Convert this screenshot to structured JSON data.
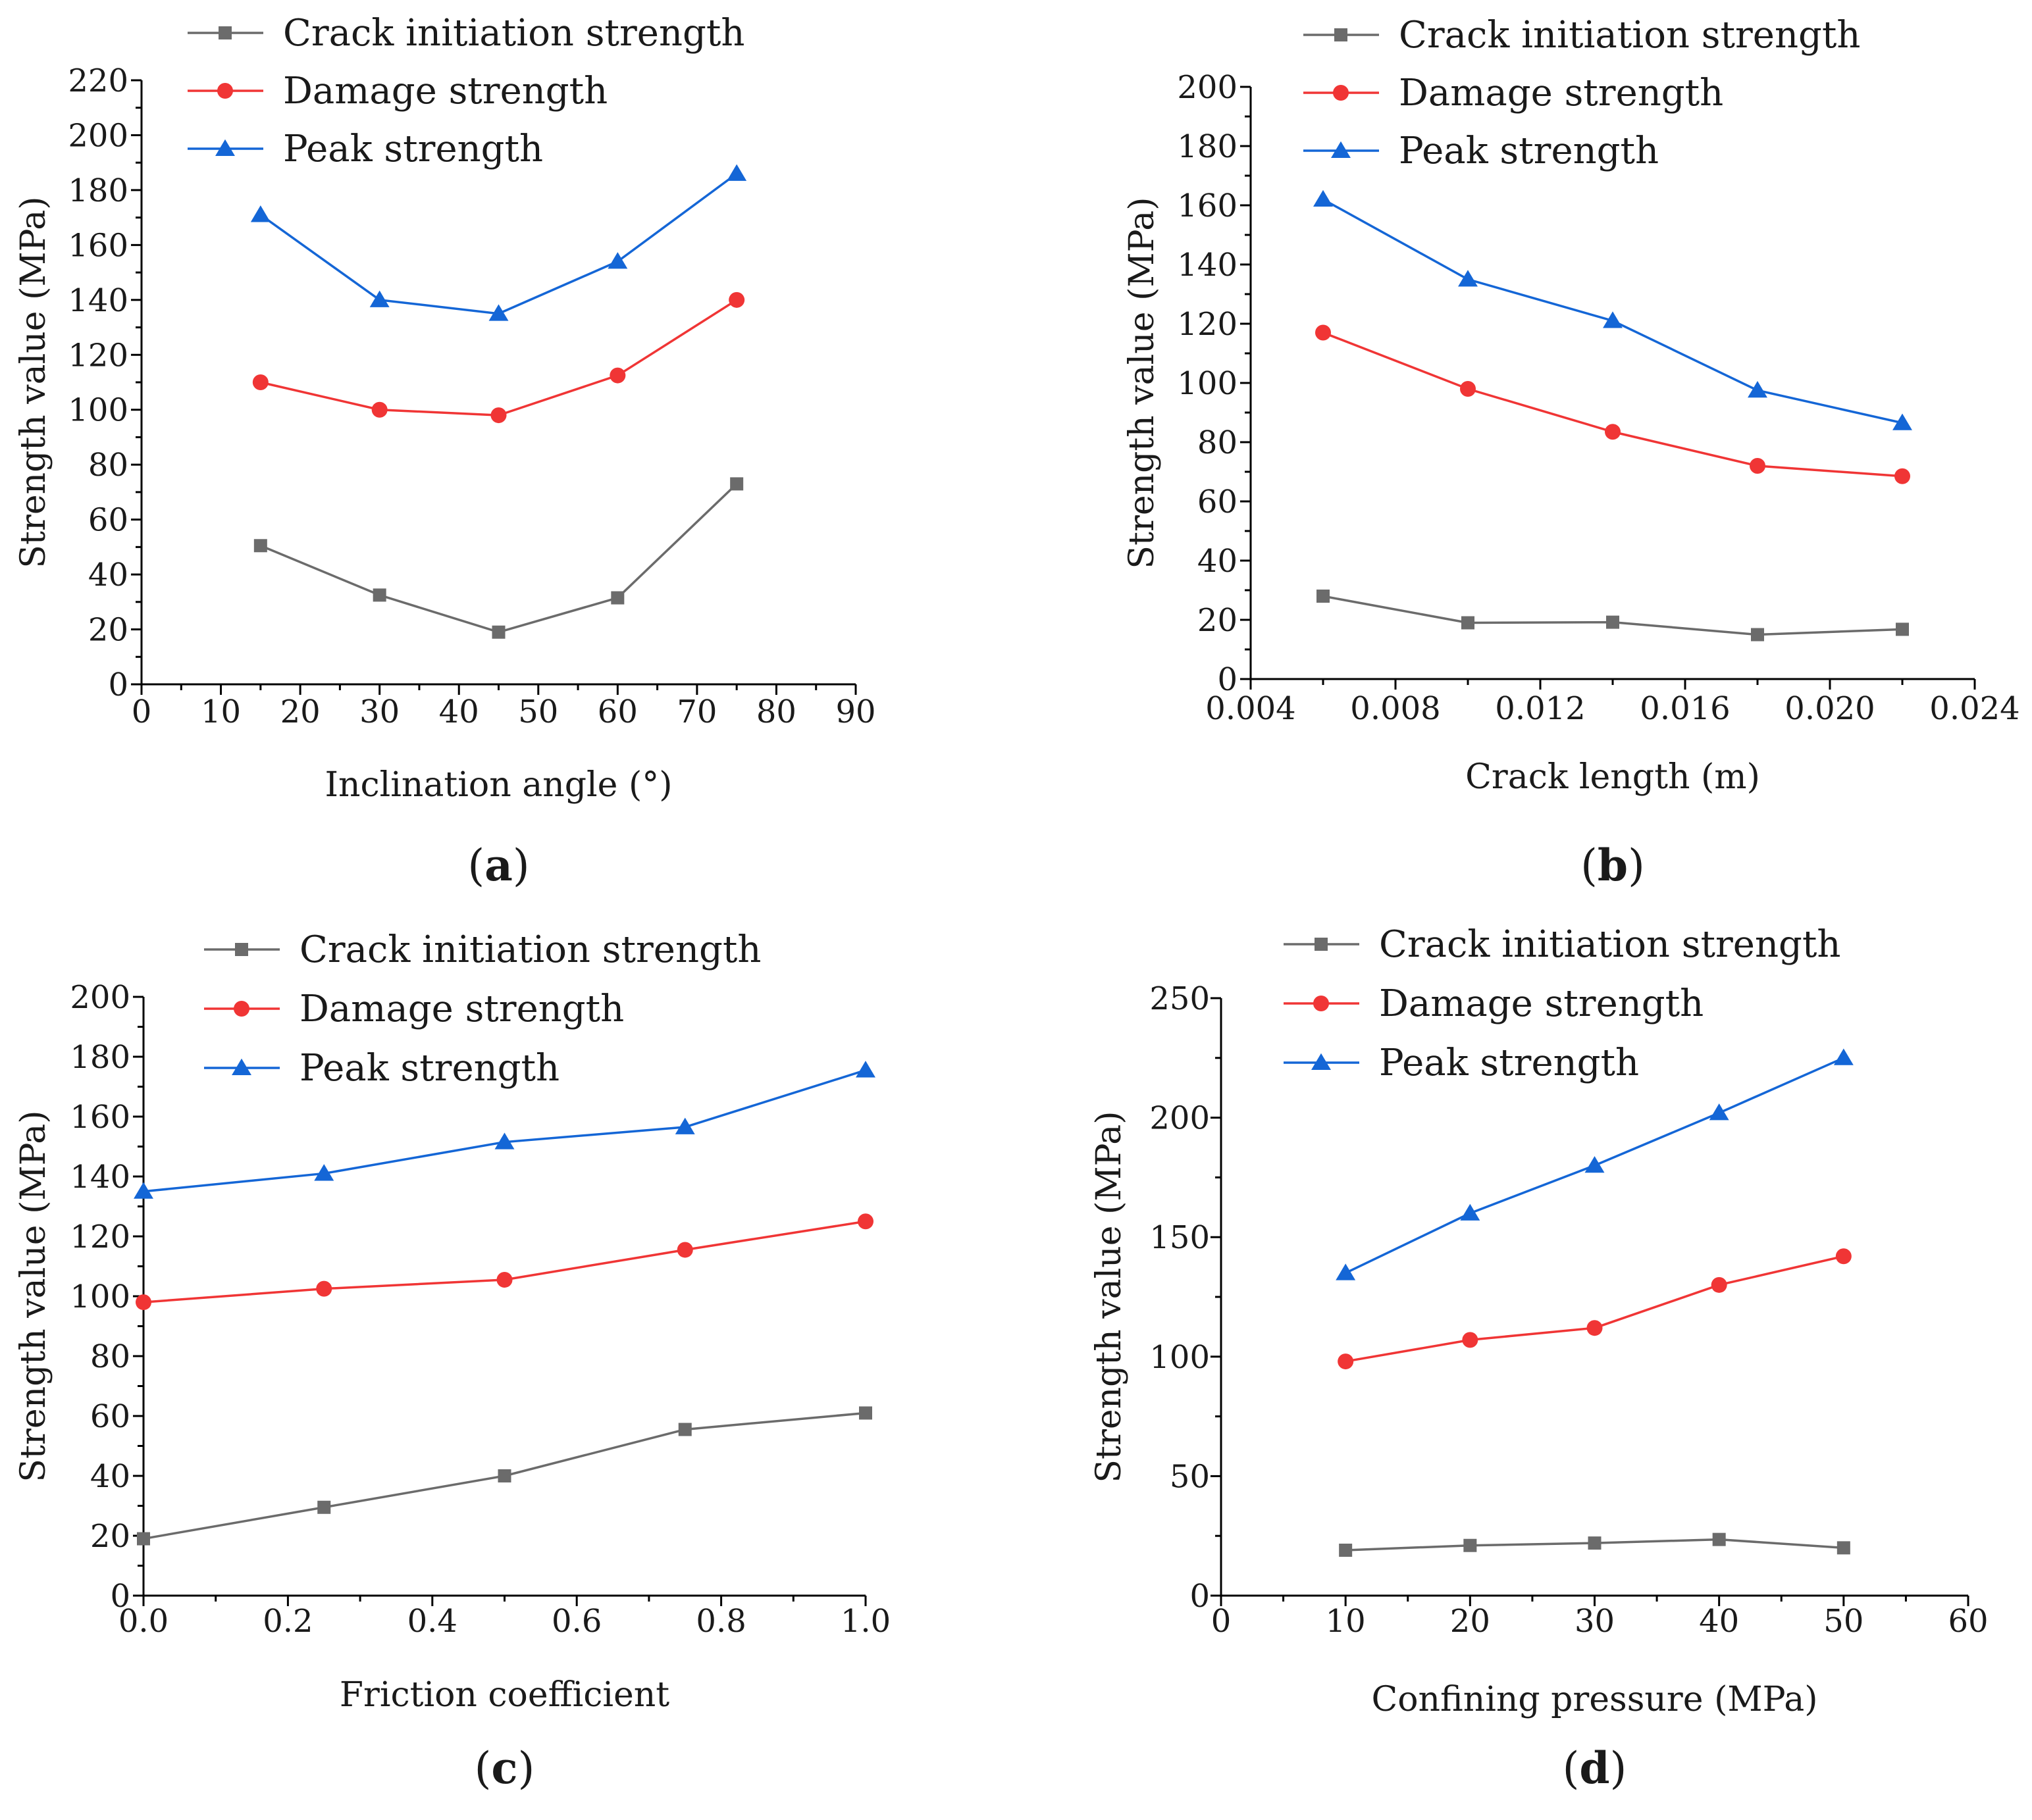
{
  "figure": {
    "background": "#ffffff",
    "colors": {
      "crack_initiation": "#6b6b6b",
      "damage": "#f03535",
      "peak": "#1466d6"
    }
  },
  "chart_data": [
    {
      "id": "a",
      "type": "line",
      "panel_label": "a",
      "xlabel": "Inclination angle (°)",
      "ylabel": "Strength value (MPa)",
      "xlim": [
        0,
        90
      ],
      "ylim": [
        0,
        220
      ],
      "xticks": [
        0,
        10,
        20,
        30,
        40,
        50,
        60,
        70,
        80,
        90
      ],
      "xtick_labels": [
        "0",
        "10",
        "20",
        "30",
        "40",
        "50",
        "60",
        "70",
        "80",
        "90"
      ],
      "yticks": [
        0,
        20,
        40,
        60,
        80,
        100,
        120,
        140,
        160,
        180,
        200,
        220
      ],
      "ytick_labels": [
        "0",
        "20",
        "40",
        "60",
        "80",
        "100",
        "120",
        "140",
        "160",
        "180",
        "200",
        "220"
      ],
      "legend_position": "top-left",
      "x": [
        15,
        30,
        45,
        60,
        75
      ],
      "series": [
        {
          "name": "Crack initiation strength",
          "marker": "square",
          "color": "#6b6b6b",
          "values": [
            50.5,
            32.5,
            19,
            31.5,
            73
          ]
        },
        {
          "name": "Damage strength",
          "marker": "circle",
          "color": "#f03535",
          "values": [
            110,
            100,
            98,
            112.5,
            140
          ]
        },
        {
          "name": "Peak strength",
          "marker": "triangle",
          "color": "#1466d6",
          "values": [
            171,
            140,
            135,
            154,
            186
          ]
        }
      ]
    },
    {
      "id": "b",
      "type": "line",
      "panel_label": "b",
      "xlabel": "Crack length (m)",
      "ylabel": "Strength value (MPa)",
      "xlim": [
        0.004,
        0.024
      ],
      "ylim": [
        0,
        200
      ],
      "xticks": [
        0.004,
        0.008,
        0.012,
        0.016,
        0.02,
        0.024
      ],
      "xtick_labels": [
        "0.004",
        "0.008",
        "0.012",
        "0.016",
        "0.020",
        "0.024"
      ],
      "yticks": [
        0,
        20,
        40,
        60,
        80,
        100,
        120,
        140,
        160,
        180,
        200
      ],
      "ytick_labels": [
        "0",
        "20",
        "40",
        "60",
        "80",
        "100",
        "120",
        "140",
        "160",
        "180",
        "200"
      ],
      "legend_position": "top-left",
      "x": [
        0.006,
        0.01,
        0.014,
        0.018,
        0.022
      ],
      "series": [
        {
          "name": "Crack initiation strength",
          "marker": "square",
          "color": "#6b6b6b",
          "values": [
            28,
            19,
            19.2,
            15,
            16.8
          ]
        },
        {
          "name": "Damage strength",
          "marker": "circle",
          "color": "#f03535",
          "values": [
            117,
            98,
            83.5,
            72,
            68.5
          ]
        },
        {
          "name": "Peak strength",
          "marker": "triangle",
          "color": "#1466d6",
          "values": [
            162,
            135,
            121,
            97.5,
            86.5
          ]
        }
      ]
    },
    {
      "id": "c",
      "type": "line",
      "panel_label": "c",
      "xlabel": "Friction coefficient",
      "ylabel": "Strength value (MPa)",
      "xlim": [
        0,
        1
      ],
      "ylim": [
        0,
        200
      ],
      "xticks": [
        0,
        0.2,
        0.4,
        0.6,
        0.8,
        1.0
      ],
      "xtick_labels": [
        "0.0",
        "0.2",
        "0.4",
        "0.6",
        "0.8",
        "1.0"
      ],
      "yticks": [
        0,
        20,
        40,
        60,
        80,
        100,
        120,
        140,
        160,
        180,
        200
      ],
      "ytick_labels": [
        "0",
        "20",
        "40",
        "60",
        "80",
        "100",
        "120",
        "140",
        "160",
        "180",
        "200"
      ],
      "legend_position": "top-left",
      "x": [
        0,
        0.25,
        0.5,
        0.75,
        1.0
      ],
      "series": [
        {
          "name": "Crack initiation strength",
          "marker": "square",
          "color": "#6b6b6b",
          "values": [
            19,
            29.5,
            40,
            55.5,
            61
          ]
        },
        {
          "name": "Damage strength",
          "marker": "circle",
          "color": "#f03535",
          "values": [
            98,
            102.5,
            105.5,
            115.5,
            125
          ]
        },
        {
          "name": "Peak strength",
          "marker": "triangle",
          "color": "#1466d6",
          "values": [
            135,
            141,
            151.5,
            156.5,
            175.5
          ]
        }
      ]
    },
    {
      "id": "d",
      "type": "line",
      "panel_label": "d",
      "xlabel": "Confining pressure (MPa)",
      "ylabel": "Strength value (MPa)",
      "xlim": [
        0,
        60
      ],
      "ylim": [
        0,
        250
      ],
      "xticks": [
        0,
        10,
        20,
        30,
        40,
        50,
        60
      ],
      "xtick_labels": [
        "0",
        "10",
        "20",
        "30",
        "40",
        "50",
        "60"
      ],
      "yticks": [
        0,
        50,
        100,
        150,
        200,
        250
      ],
      "ytick_labels": [
        "0",
        "50",
        "100",
        "150",
        "200",
        "250"
      ],
      "legend_position": "top-left",
      "x": [
        10,
        20,
        30,
        40,
        50
      ],
      "series": [
        {
          "name": "Crack initiation strength",
          "marker": "square",
          "color": "#6b6b6b",
          "values": [
            19,
            21,
            22,
            23.5,
            20
          ]
        },
        {
          "name": "Damage strength",
          "marker": "circle",
          "color": "#f03535",
          "values": [
            98,
            107,
            112,
            130,
            142
          ]
        },
        {
          "name": "Peak strength",
          "marker": "triangle",
          "color": "#1466d6",
          "values": [
            135,
            160,
            180,
            202,
            225
          ]
        }
      ]
    }
  ]
}
